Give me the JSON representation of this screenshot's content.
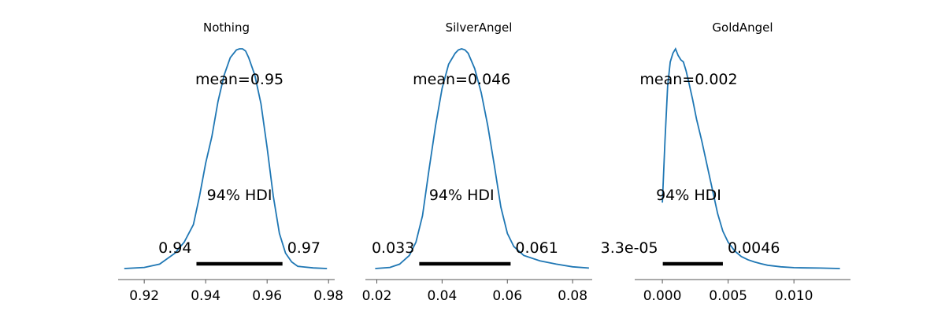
{
  "chart_data": [
    {
      "type": "area",
      "title": "Nothing",
      "xlim": [
        0.9115,
        0.982
      ],
      "x_ticks": [
        0.92,
        0.94,
        0.96,
        0.98
      ],
      "tick_labels": [
        "0.92",
        "0.94",
        "0.96",
        "0.98"
      ],
      "mean_label": "mean=0.95",
      "hdi_label": "94% HDI",
      "hdi": [
        0.937,
        0.965
      ],
      "hdi_low_label": "0.94",
      "hdi_high_label": "0.97",
      "density": {
        "x": [
          0.9135,
          0.92,
          0.925,
          0.93,
          0.933,
          0.936,
          0.938,
          0.94,
          0.942,
          0.944,
          0.946,
          0.948,
          0.95,
          0.951,
          0.952,
          0.953,
          0.954,
          0.956,
          0.958,
          0.96,
          0.962,
          0.964,
          0.966,
          0.968,
          0.97,
          0.975,
          0.9795
        ],
        "y": [
          0.0,
          0.005,
          0.02,
          0.07,
          0.12,
          0.2,
          0.33,
          0.48,
          0.6,
          0.76,
          0.88,
          0.96,
          0.995,
          1.0,
          1.0,
          0.99,
          0.96,
          0.88,
          0.75,
          0.55,
          0.33,
          0.16,
          0.07,
          0.03,
          0.01,
          0.003,
          0.0
        ]
      }
    },
    {
      "type": "area",
      "title": "SilverAngel",
      "xlim": [
        0.0165,
        0.086
      ],
      "x_ticks": [
        0.02,
        0.04,
        0.06,
        0.08
      ],
      "tick_labels": [
        "0.02",
        "0.04",
        "0.06",
        "0.08"
      ],
      "mean_label": "mean=0.046",
      "hdi_label": "94% HDI",
      "hdi_label_x": 0.046,
      "hdi": [
        0.033,
        0.061
      ],
      "hdi_low_label": "0.033",
      "hdi_high_label": "0.061",
      "density": {
        "x": [
          0.0195,
          0.024,
          0.027,
          0.03,
          0.032,
          0.034,
          0.036,
          0.038,
          0.04,
          0.042,
          0.044,
          0.045,
          0.046,
          0.047,
          0.048,
          0.05,
          0.052,
          0.054,
          0.056,
          0.058,
          0.06,
          0.062,
          0.065,
          0.07,
          0.075,
          0.08,
          0.085
        ],
        "y": [
          0.0,
          0.005,
          0.02,
          0.06,
          0.12,
          0.24,
          0.45,
          0.65,
          0.82,
          0.93,
          0.98,
          0.995,
          1.0,
          0.995,
          0.98,
          0.91,
          0.8,
          0.65,
          0.47,
          0.28,
          0.16,
          0.1,
          0.06,
          0.035,
          0.02,
          0.008,
          0.002
        ]
      }
    },
    {
      "type": "area",
      "title": "GoldAngel",
      "xlim": [
        -0.0021,
        0.0143
      ],
      "x_ticks": [
        0.0,
        0.005,
        0.01
      ],
      "tick_labels": [
        "0.000",
        "0.005",
        "0.010"
      ],
      "mean_label": "mean=0.002",
      "hdi_label": "94% HDI",
      "hdi_label_x": 0.002,
      "hdi": [
        3.3e-05,
        0.0046
      ],
      "hdi_low_label": "3.3e-05",
      "hdi_high_label": "0.0046",
      "density": {
        "x": [
          0.0,
          0.0002,
          0.0004,
          0.0006,
          0.0008,
          0.001,
          0.0012,
          0.0014,
          0.0016,
          0.0018,
          0.002,
          0.0023,
          0.0026,
          0.003,
          0.0034,
          0.0038,
          0.0042,
          0.0046,
          0.005,
          0.0055,
          0.006,
          0.0065,
          0.007,
          0.0075,
          0.008,
          0.009,
          0.01,
          0.011,
          0.012,
          0.0135
        ],
        "y": [
          0.3,
          0.58,
          0.83,
          0.94,
          0.98,
          1.0,
          0.97,
          0.95,
          0.94,
          0.9,
          0.85,
          0.77,
          0.68,
          0.58,
          0.47,
          0.36,
          0.25,
          0.17,
          0.12,
          0.08,
          0.055,
          0.04,
          0.03,
          0.022,
          0.015,
          0.008,
          0.004,
          0.003,
          0.002,
          0.0
        ]
      }
    }
  ]
}
